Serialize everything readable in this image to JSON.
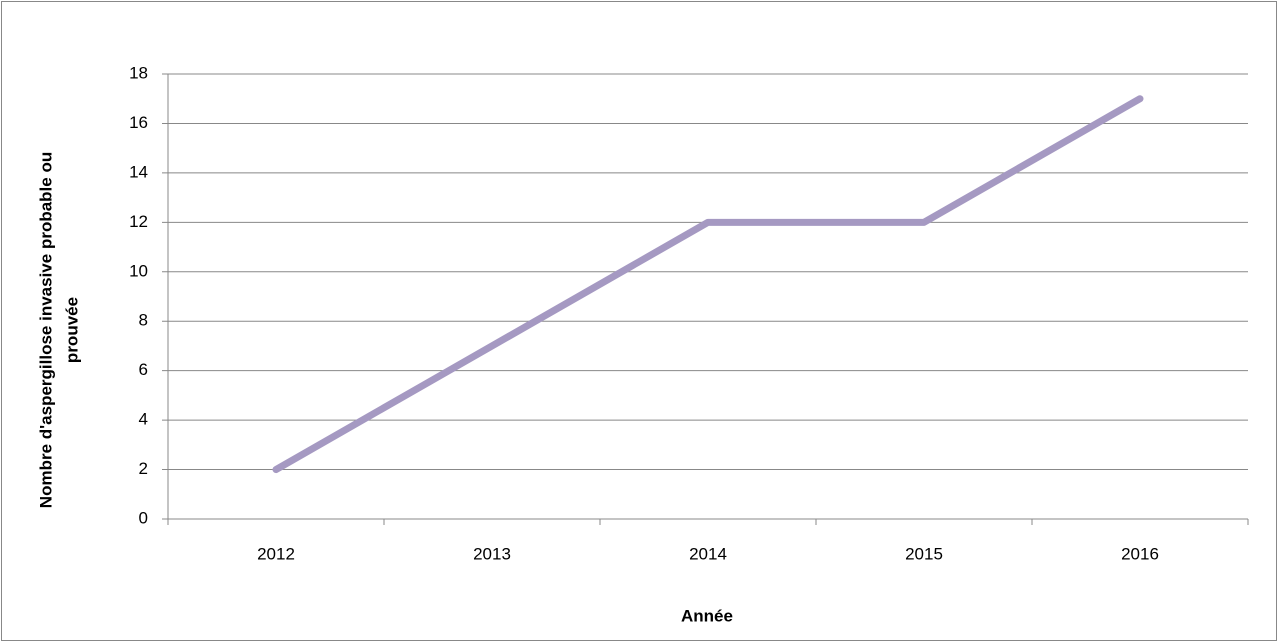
{
  "chart_data": {
    "type": "line",
    "x_label": "Année",
    "y_label": [
      "Nombre d'aspergillose invasive probable ou",
      "prouvée"
    ],
    "categories": [
      "2012",
      "2013",
      "2014",
      "2015",
      "2016"
    ],
    "series": [
      {
        "name": "Nombre",
        "color": "#a599c2",
        "values": [
          2,
          7,
          12,
          12,
          17
        ]
      }
    ],
    "ylim": [
      0,
      18
    ],
    "yticks": [
      0,
      2,
      4,
      6,
      8,
      10,
      12,
      14,
      16,
      18
    ],
    "grid": true
  }
}
